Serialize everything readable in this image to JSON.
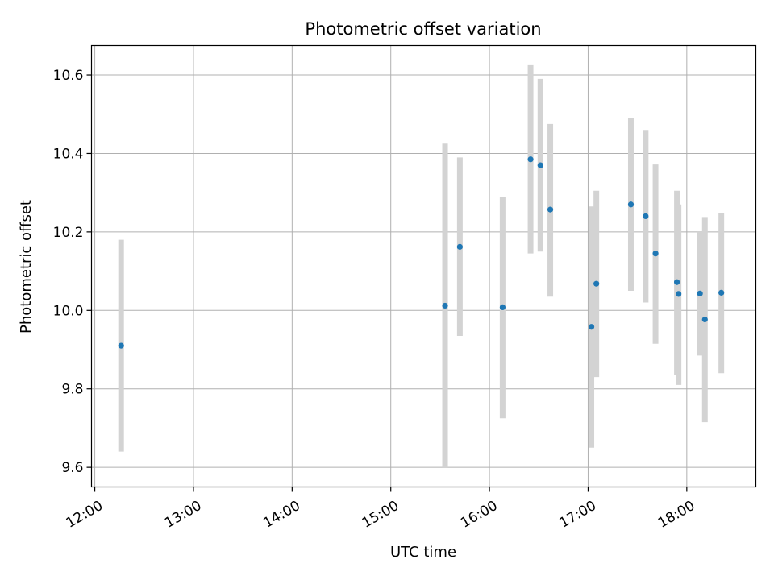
{
  "chart_data": {
    "type": "scatter",
    "title": "Photometric offset variation",
    "xlabel": "UTC time",
    "ylabel": "Photometric offset",
    "x_axis_type": "time",
    "x_ticks": [
      "12:00",
      "13:00",
      "14:00",
      "15:00",
      "16:00",
      "17:00",
      "18:00"
    ],
    "xlim": [
      "11:58",
      "18:42"
    ],
    "y_ticks": [
      "9.6",
      "9.8",
      "10.0",
      "10.2",
      "10.4",
      "10.6"
    ],
    "ylim": [
      9.55,
      10.675
    ],
    "grid": true,
    "marker_color": "#1f77b4",
    "errorbar_color": "#d3d3d3",
    "points": [
      {
        "x": "12:16",
        "y": 9.91,
        "err_low": 9.64,
        "err_high": 10.18
      },
      {
        "x": "15:33",
        "y": 10.012,
        "err_low": 9.6,
        "err_high": 10.425
      },
      {
        "x": "15:42",
        "y": 10.162,
        "err_low": 9.935,
        "err_high": 10.39
      },
      {
        "x": "16:08",
        "y": 10.008,
        "err_low": 9.725,
        "err_high": 10.29
      },
      {
        "x": "16:25",
        "y": 10.385,
        "err_low": 10.145,
        "err_high": 10.625
      },
      {
        "x": "16:31",
        "y": 10.37,
        "err_low": 10.15,
        "err_high": 10.59
      },
      {
        "x": "16:37",
        "y": 10.257,
        "err_low": 10.035,
        "err_high": 10.475
      },
      {
        "x": "17:02",
        "y": 9.958,
        "err_low": 9.65,
        "err_high": 10.265
      },
      {
        "x": "17:05",
        "y": 10.068,
        "err_low": 9.83,
        "err_high": 10.305
      },
      {
        "x": "17:26",
        "y": 10.27,
        "err_low": 10.05,
        "err_high": 10.49
      },
      {
        "x": "17:35",
        "y": 10.24,
        "err_low": 10.02,
        "err_high": 10.46
      },
      {
        "x": "17:41",
        "y": 10.145,
        "err_low": 9.915,
        "err_high": 10.372
      },
      {
        "x": "17:54",
        "y": 10.072,
        "err_low": 9.835,
        "err_high": 10.305
      },
      {
        "x": "17:55",
        "y": 10.042,
        "err_low": 9.81,
        "err_high": 10.27
      },
      {
        "x": "18:08",
        "y": 10.043,
        "err_low": 9.885,
        "err_high": 10.2
      },
      {
        "x": "18:11",
        "y": 9.977,
        "err_low": 9.715,
        "err_high": 10.238
      },
      {
        "x": "18:21",
        "y": 10.045,
        "err_low": 9.84,
        "err_high": 10.248
      }
    ]
  }
}
